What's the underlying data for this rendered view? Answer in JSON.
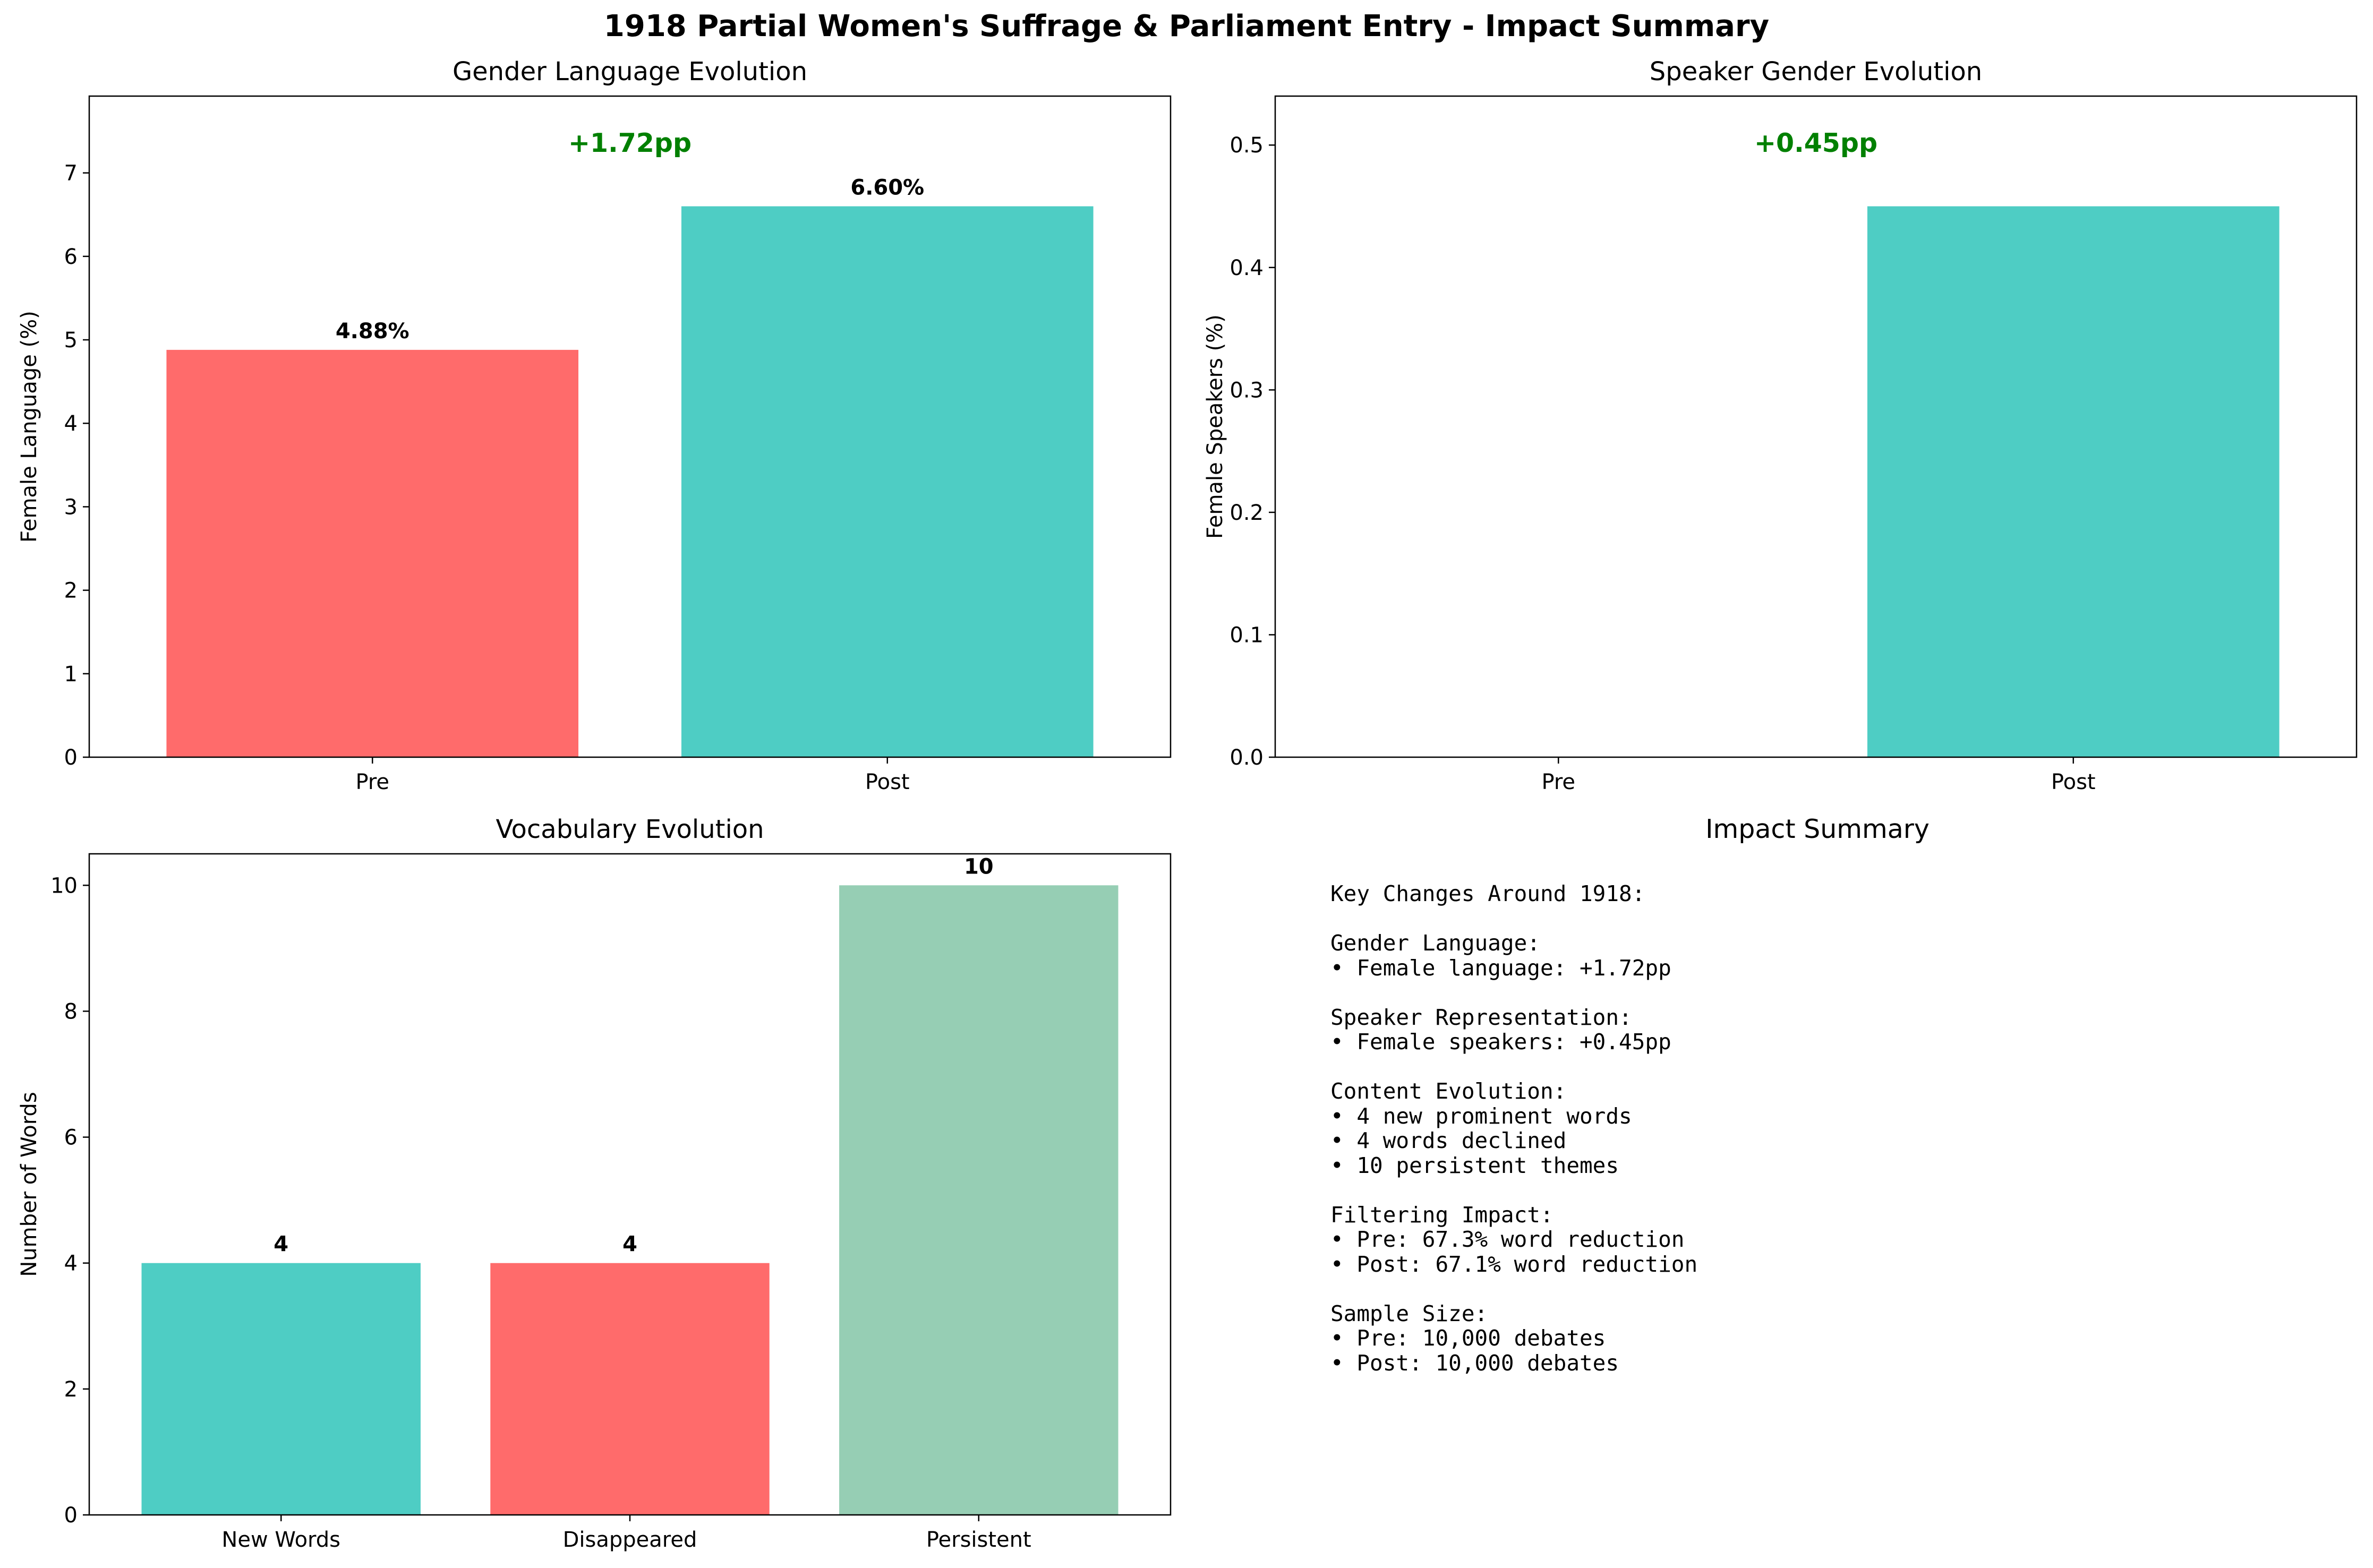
{
  "figure_title": "1918 Partial Women's Suffrage & Parliament Entry - Impact Summary",
  "chart_data": [
    {
      "type": "bar",
      "title": "Gender Language Evolution",
      "xlabel": "",
      "ylabel": "Female Language (%)",
      "categories": [
        "Pre",
        "Post"
      ],
      "values": [
        4.88,
        6.6
      ],
      "value_labels": [
        "4.88%",
        "6.60%"
      ],
      "colors": [
        "#ff6b6b",
        "#4ecdc4"
      ],
      "ylim": [
        0,
        7.92
      ],
      "yticks": [
        "0",
        "1",
        "2",
        "3",
        "4",
        "5",
        "6",
        "7"
      ],
      "annotation": "+1.72pp",
      "annotation_color": "#008000"
    },
    {
      "type": "bar",
      "title": "Speaker Gender Evolution",
      "xlabel": "",
      "ylabel": "Female Speakers (%)",
      "categories": [
        "Pre",
        "Post"
      ],
      "values": [
        0,
        0.45
      ],
      "colors": [
        "#ff6b6b",
        "#4ecdc4"
      ],
      "ylim": [
        0,
        0.54
      ],
      "yticks": [
        "0.0",
        "0.1",
        "0.2",
        "0.3",
        "0.4",
        "0.5"
      ],
      "annotation": "+0.45pp",
      "annotation_color": "#008000"
    },
    {
      "type": "bar",
      "title": "Vocabulary Evolution",
      "xlabel": "",
      "ylabel": "Number of Words",
      "categories": [
        "New Words",
        "Disappeared",
        "Persistent"
      ],
      "values": [
        4,
        4,
        10
      ],
      "value_labels": [
        "4",
        "4",
        "10"
      ],
      "colors": [
        "#4ecdc4",
        "#ff6b6b",
        "#96ceb4"
      ],
      "ylim": [
        0,
        10.5
      ],
      "yticks": [
        "0",
        "2",
        "4",
        "6",
        "8",
        "10"
      ]
    }
  ],
  "summary": {
    "title": "Impact Summary",
    "lines": [
      "Key Changes Around 1918:",
      "",
      "Gender Language:",
      "• Female language: +1.72pp",
      "",
      "Speaker Representation:",
      "• Female speakers: +0.45pp",
      "",
      "Content Evolution:",
      "• 4 new prominent words",
      "• 4 words declined",
      "• 10 persistent themes",
      "",
      "Filtering Impact:",
      "• Pre: 67.3% word reduction",
      "• Post: 67.1% word reduction",
      "",
      "Sample Size:",
      "• Pre: 10,000 debates",
      "• Post: 10,000 debates"
    ]
  }
}
